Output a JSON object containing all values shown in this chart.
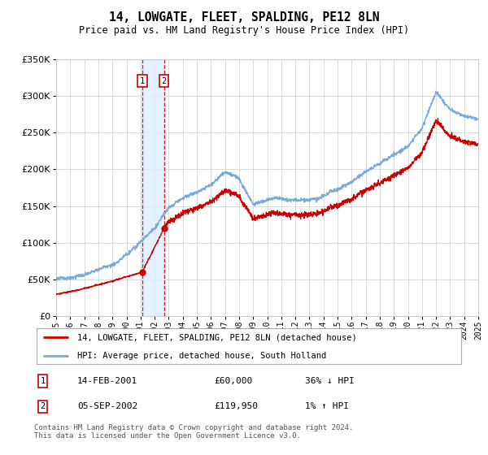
{
  "title": "14, LOWGATE, FLEET, SPALDING, PE12 8LN",
  "subtitle": "Price paid vs. HM Land Registry's House Price Index (HPI)",
  "legend_line1": "14, LOWGATE, FLEET, SPALDING, PE12 8LN (detached house)",
  "legend_line2": "HPI: Average price, detached house, South Holland",
  "transaction1_date": "14-FEB-2001",
  "transaction1_price": 60000,
  "transaction1_label": "36% ↓ HPI",
  "transaction2_date": "05-SEP-2002",
  "transaction2_price": 119950,
  "transaction2_label": "1% ↑ HPI",
  "footer": "Contains HM Land Registry data © Crown copyright and database right 2024.\nThis data is licensed under the Open Government Licence v3.0.",
  "hpi_color": "#7aaadd",
  "price_color": "#cc0000",
  "background_color": "#ffffff",
  "grid_color": "#cccccc",
  "transaction_shade_color": "#ddeeff",
  "ylim": [
    0,
    350000
  ],
  "ylabel_ticks": [
    0,
    50000,
    100000,
    150000,
    200000,
    250000,
    300000,
    350000
  ],
  "start_year": 1995,
  "end_year": 2025,
  "t1_year": 2001.12,
  "t2_year": 2002.67,
  "hpi_key_years": [
    1995,
    1996,
    1997,
    1998,
    1999,
    2000,
    2001,
    2002,
    2003,
    2004,
    2005,
    2006,
    2007,
    2008,
    2009,
    2010,
    2011,
    2012,
    2013,
    2014,
    2015,
    2016,
    2017,
    2018,
    2019,
    2020,
    2021,
    2022,
    2023,
    2024,
    2025
  ],
  "hpi_key_vals": [
    50000,
    53000,
    57000,
    64000,
    72000,
    87000,
    102000,
    122000,
    150000,
    163000,
    171000,
    181000,
    198000,
    188000,
    153000,
    160000,
    164000,
    160000,
    164000,
    170000,
    177000,
    188000,
    202000,
    213000,
    223000,
    233000,
    258000,
    308000,
    283000,
    272000,
    268000
  ]
}
